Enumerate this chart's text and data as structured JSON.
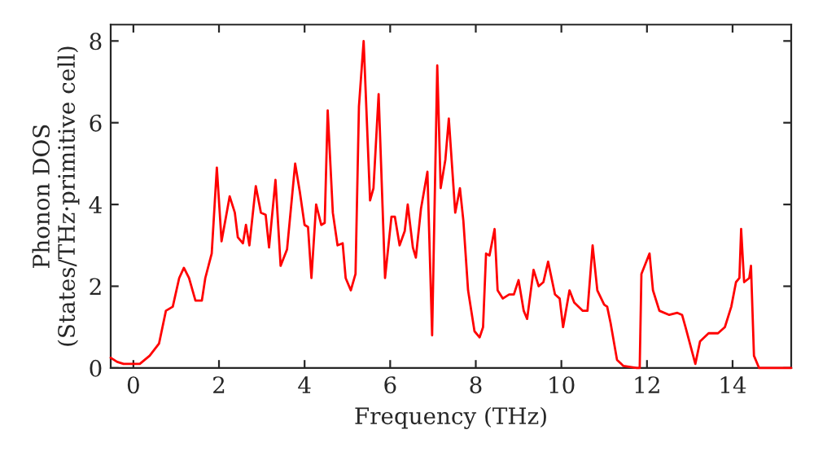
{
  "chart_data": {
    "type": "line",
    "xlabel": "Frequency (THz)",
    "ylabel": "Phonon DOS\n(States/THz·primitive cell)",
    "xlim": [
      -0.53,
      15.37
    ],
    "ylim": [
      0,
      8.4
    ],
    "xticks": [
      0,
      2,
      4,
      6,
      8,
      10,
      12,
      14
    ],
    "yticks": [
      0,
      2,
      4,
      6,
      8
    ],
    "grid": false,
    "legend": false,
    "marker": "none",
    "line_style": "solid",
    "series": [
      {
        "color": "#ff0000",
        "x": [
          -0.53,
          -0.38,
          -0.23,
          0.15,
          0.38,
          0.6,
          0.76,
          0.92,
          1.07,
          1.18,
          1.3,
          1.45,
          1.6,
          1.68,
          1.83,
          1.95,
          2.06,
          2.25,
          2.37,
          2.44,
          2.56,
          2.63,
          2.71,
          2.86,
          2.98,
          3.09,
          3.17,
          3.32,
          3.44,
          3.59,
          3.78,
          3.89,
          4.0,
          4.08,
          4.16,
          4.27,
          4.39,
          4.47,
          4.54,
          4.66,
          4.77,
          4.89,
          4.96,
          5.08,
          5.19,
          5.27,
          5.38,
          5.53,
          5.61,
          5.73,
          5.88,
          6.03,
          6.11,
          6.22,
          6.34,
          6.41,
          6.53,
          6.6,
          6.72,
          6.87,
          6.98,
          7.1,
          7.18,
          7.29,
          7.37,
          7.52,
          7.63,
          7.71,
          7.82,
          7.97,
          8.09,
          8.17,
          8.24,
          8.32,
          8.44,
          8.51,
          8.63,
          8.78,
          8.89,
          9.0,
          9.12,
          9.2,
          9.35,
          9.47,
          9.58,
          9.69,
          9.85,
          9.96,
          10.04,
          10.19,
          10.3,
          10.5,
          10.61,
          10.73,
          10.84,
          11.0,
          11.07,
          11.15,
          11.3,
          11.45,
          11.76,
          11.83,
          11.87,
          12.06,
          12.14,
          12.29,
          12.52,
          12.71,
          12.82,
          12.9,
          13.13,
          13.24,
          13.44,
          13.66,
          13.82,
          13.97,
          14.08,
          14.16,
          14.2,
          14.27,
          14.39,
          14.43,
          14.5,
          14.62,
          15.37
        ],
        "values": [
          0.25,
          0.15,
          0.1,
          0.1,
          0.3,
          0.6,
          1.4,
          1.5,
          2.2,
          2.45,
          2.2,
          1.65,
          1.65,
          2.2,
          2.8,
          4.9,
          3.1,
          4.2,
          3.8,
          3.2,
          3.05,
          3.5,
          3.0,
          4.45,
          3.8,
          3.75,
          2.95,
          4.6,
          2.5,
          2.9,
          5.0,
          4.3,
          3.5,
          3.45,
          2.2,
          4.0,
          3.5,
          3.55,
          6.3,
          3.8,
          3.0,
          3.05,
          2.2,
          1.9,
          2.3,
          6.4,
          8.0,
          4.1,
          4.4,
          6.7,
          2.2,
          3.7,
          3.7,
          3.0,
          3.35,
          4.0,
          2.95,
          2.7,
          3.9,
          4.8,
          0.8,
          7.4,
          4.4,
          5.1,
          6.1,
          3.8,
          4.4,
          3.6,
          1.9,
          0.9,
          0.75,
          1.0,
          2.8,
          2.75,
          3.4,
          1.9,
          1.7,
          1.8,
          1.8,
          2.15,
          1.4,
          1.2,
          2.4,
          2.0,
          2.1,
          2.6,
          1.8,
          1.7,
          1.0,
          1.9,
          1.6,
          1.4,
          1.4,
          3.0,
          1.9,
          1.55,
          1.5,
          1.1,
          0.2,
          0.05,
          0.0,
          0.0,
          2.3,
          2.8,
          1.9,
          1.4,
          1.3,
          1.35,
          1.3,
          1.0,
          0.1,
          0.65,
          0.85,
          0.85,
          1.0,
          1.5,
          2.1,
          2.2,
          3.4,
          2.1,
          2.2,
          2.5,
          0.3,
          0.0,
          0.0
        ]
      }
    ]
  }
}
